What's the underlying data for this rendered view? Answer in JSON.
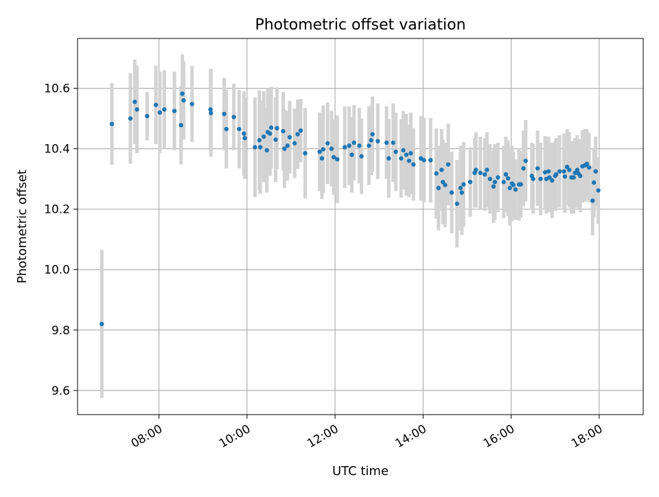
{
  "chart_data": {
    "type": "scatter",
    "title": "Photometric offset variation",
    "xlabel": "UTC time",
    "ylabel": "Photometric offset",
    "x_unit": "hours UTC",
    "xlim": [
      6.15,
      19.0
    ],
    "ylim": [
      9.52,
      10.765
    ],
    "x_ticks": [
      8,
      10,
      12,
      14,
      16,
      18
    ],
    "x_tick_labels": [
      "08:00",
      "10:00",
      "12:00",
      "14:00",
      "16:00",
      "18:00"
    ],
    "y_ticks": [
      9.6,
      9.8,
      10.0,
      10.2,
      10.4,
      10.6
    ],
    "y_tick_labels": [
      "9.6",
      "9.8",
      "10.0",
      "10.2",
      "10.4",
      "10.6"
    ],
    "grid": true,
    "colors": {
      "point": "#1f77b4",
      "errorbar": "#d3d3d3",
      "grid": "#b0b0b0"
    },
    "series": [
      {
        "points": [
          [
            6.7,
            9.82,
            0.245
          ],
          [
            6.93,
            10.482,
            0.135
          ],
          [
            7.35,
            10.5,
            0.15
          ],
          [
            7.45,
            10.555,
            0.14
          ],
          [
            7.5,
            10.53,
            0.145
          ],
          [
            7.73,
            10.508,
            0.08
          ],
          [
            7.93,
            10.545,
            0.13
          ],
          [
            8.02,
            10.52,
            0.135
          ],
          [
            8.12,
            10.53,
            0.13
          ],
          [
            8.35,
            10.525,
            0.13
          ],
          [
            8.5,
            10.478,
            0.13
          ],
          [
            8.53,
            10.582,
            0.13
          ],
          [
            8.56,
            10.56,
            0.13
          ],
          [
            8.75,
            10.548,
            0.125
          ],
          [
            9.17,
            10.53,
            0.135
          ],
          [
            9.18,
            10.518,
            0.145
          ],
          [
            9.48,
            10.515,
            0.12
          ],
          [
            9.53,
            10.465,
            0.13
          ],
          [
            9.7,
            10.505,
            0.11
          ],
          [
            9.82,
            10.465,
            0.13
          ],
          [
            9.93,
            10.45,
            0.14
          ],
          [
            9.95,
            10.435,
            0.135
          ],
          [
            10.18,
            10.405,
            0.165
          ],
          [
            10.28,
            10.428,
            0.165
          ],
          [
            10.3,
            10.405,
            0.155
          ],
          [
            10.38,
            10.44,
            0.15
          ],
          [
            10.45,
            10.395,
            0.14
          ],
          [
            10.47,
            10.455,
            0.145
          ],
          [
            10.52,
            10.45,
            0.14
          ],
          [
            10.55,
            10.47,
            0.135
          ],
          [
            10.65,
            10.43,
            0.14
          ],
          [
            10.68,
            10.468,
            0.135
          ],
          [
            10.82,
            10.458,
            0.13
          ],
          [
            10.85,
            10.4,
            0.13
          ],
          [
            10.92,
            10.41,
            0.115
          ],
          [
            10.97,
            10.438,
            0.12
          ],
          [
            11.08,
            10.418,
            0.115
          ],
          [
            11.15,
            10.448,
            0.115
          ],
          [
            11.22,
            10.46,
            0.105
          ],
          [
            11.32,
            10.385,
            0.15
          ],
          [
            11.65,
            10.39,
            0.13
          ],
          [
            11.7,
            10.368,
            0.135
          ],
          [
            11.73,
            10.398,
            0.145
          ],
          [
            11.83,
            10.418,
            0.135
          ],
          [
            11.92,
            10.4,
            0.125
          ],
          [
            11.97,
            10.372,
            0.125
          ],
          [
            12.05,
            10.365,
            0.145
          ],
          [
            12.22,
            10.405,
            0.135
          ],
          [
            12.32,
            10.41,
            0.13
          ],
          [
            12.38,
            10.38,
            0.125
          ],
          [
            12.43,
            10.42,
            0.125
          ],
          [
            12.55,
            10.41,
            0.125
          ],
          [
            12.6,
            10.375,
            0.125
          ],
          [
            12.77,
            10.41,
            0.13
          ],
          [
            12.82,
            10.428,
            0.115
          ],
          [
            12.85,
            10.448,
            0.125
          ],
          [
            12.97,
            10.425,
            0.125
          ],
          [
            13.17,
            10.42,
            0.12
          ],
          [
            13.22,
            10.368,
            0.13
          ],
          [
            13.32,
            10.42,
            0.13
          ],
          [
            13.38,
            10.39,
            0.13
          ],
          [
            13.5,
            10.368,
            0.13
          ],
          [
            13.55,
            10.395,
            0.13
          ],
          [
            13.62,
            10.38,
            0.135
          ],
          [
            13.68,
            10.36,
            0.12
          ],
          [
            13.72,
            10.385,
            0.135
          ],
          [
            13.78,
            10.348,
            0.12
          ],
          [
            13.95,
            10.368,
            0.14
          ],
          [
            14.02,
            10.362,
            0.14
          ],
          [
            14.17,
            10.362,
            0.14
          ],
          [
            14.3,
            10.318,
            0.15
          ],
          [
            14.35,
            10.27,
            0.14
          ],
          [
            14.42,
            10.33,
            0.135
          ],
          [
            14.45,
            10.29,
            0.14
          ],
          [
            14.5,
            10.28,
            0.14
          ],
          [
            14.57,
            10.348,
            0.135
          ],
          [
            14.65,
            10.255,
            0.135
          ],
          [
            14.77,
            10.218,
            0.145
          ],
          [
            14.85,
            10.27,
            0.14
          ],
          [
            14.88,
            10.255,
            0.14
          ],
          [
            14.92,
            10.282,
            0.14
          ],
          [
            15.07,
            10.29,
            0.115
          ],
          [
            15.17,
            10.32,
            0.115
          ],
          [
            15.2,
            10.33,
            0.125
          ],
          [
            15.3,
            10.32,
            0.12
          ],
          [
            15.4,
            10.315,
            0.12
          ],
          [
            15.45,
            10.33,
            0.125
          ],
          [
            15.52,
            10.3,
            0.115
          ],
          [
            15.6,
            10.275,
            0.12
          ],
          [
            15.63,
            10.29,
            0.125
          ],
          [
            15.7,
            10.305,
            0.115
          ],
          [
            15.83,
            10.29,
            0.12
          ],
          [
            15.88,
            10.315,
            0.125
          ],
          [
            15.93,
            10.302,
            0.125
          ],
          [
            15.97,
            10.27,
            0.125
          ],
          [
            16.02,
            10.285,
            0.125
          ],
          [
            16.05,
            10.28,
            0.11
          ],
          [
            16.1,
            10.265,
            0.1
          ],
          [
            16.18,
            10.282,
            0.12
          ],
          [
            16.22,
            10.282,
            0.11
          ],
          [
            16.28,
            10.335,
            0.125
          ],
          [
            16.33,
            10.36,
            0.135
          ],
          [
            16.47,
            10.31,
            0.11
          ],
          [
            16.5,
            10.3,
            0.115
          ],
          [
            16.6,
            10.335,
            0.125
          ],
          [
            16.67,
            10.3,
            0.12
          ],
          [
            16.77,
            10.322,
            0.12
          ],
          [
            16.8,
            10.3,
            0.115
          ],
          [
            16.85,
            10.325,
            0.115
          ],
          [
            16.87,
            10.305,
            0.115
          ],
          [
            16.93,
            10.295,
            0.125
          ],
          [
            17.0,
            10.31,
            0.115
          ],
          [
            17.02,
            10.315,
            0.12
          ],
          [
            17.1,
            10.325,
            0.12
          ],
          [
            17.2,
            10.325,
            0.125
          ],
          [
            17.22,
            10.308,
            0.12
          ],
          [
            17.27,
            10.34,
            0.125
          ],
          [
            17.32,
            10.33,
            0.125
          ],
          [
            17.37,
            10.305,
            0.12
          ],
          [
            17.42,
            10.305,
            0.12
          ],
          [
            17.45,
            10.32,
            0.115
          ],
          [
            17.5,
            10.33,
            0.115
          ],
          [
            17.53,
            10.318,
            0.115
          ],
          [
            17.57,
            10.31,
            0.12
          ],
          [
            17.62,
            10.342,
            0.12
          ],
          [
            17.68,
            10.345,
            0.12
          ],
          [
            17.72,
            10.35,
            0.115
          ],
          [
            17.77,
            10.338,
            0.115
          ],
          [
            17.85,
            10.228,
            0.115
          ],
          [
            17.88,
            10.288,
            0.115
          ],
          [
            17.92,
            10.325,
            0.115
          ],
          [
            17.98,
            10.262,
            0.11
          ]
        ]
      }
    ]
  }
}
